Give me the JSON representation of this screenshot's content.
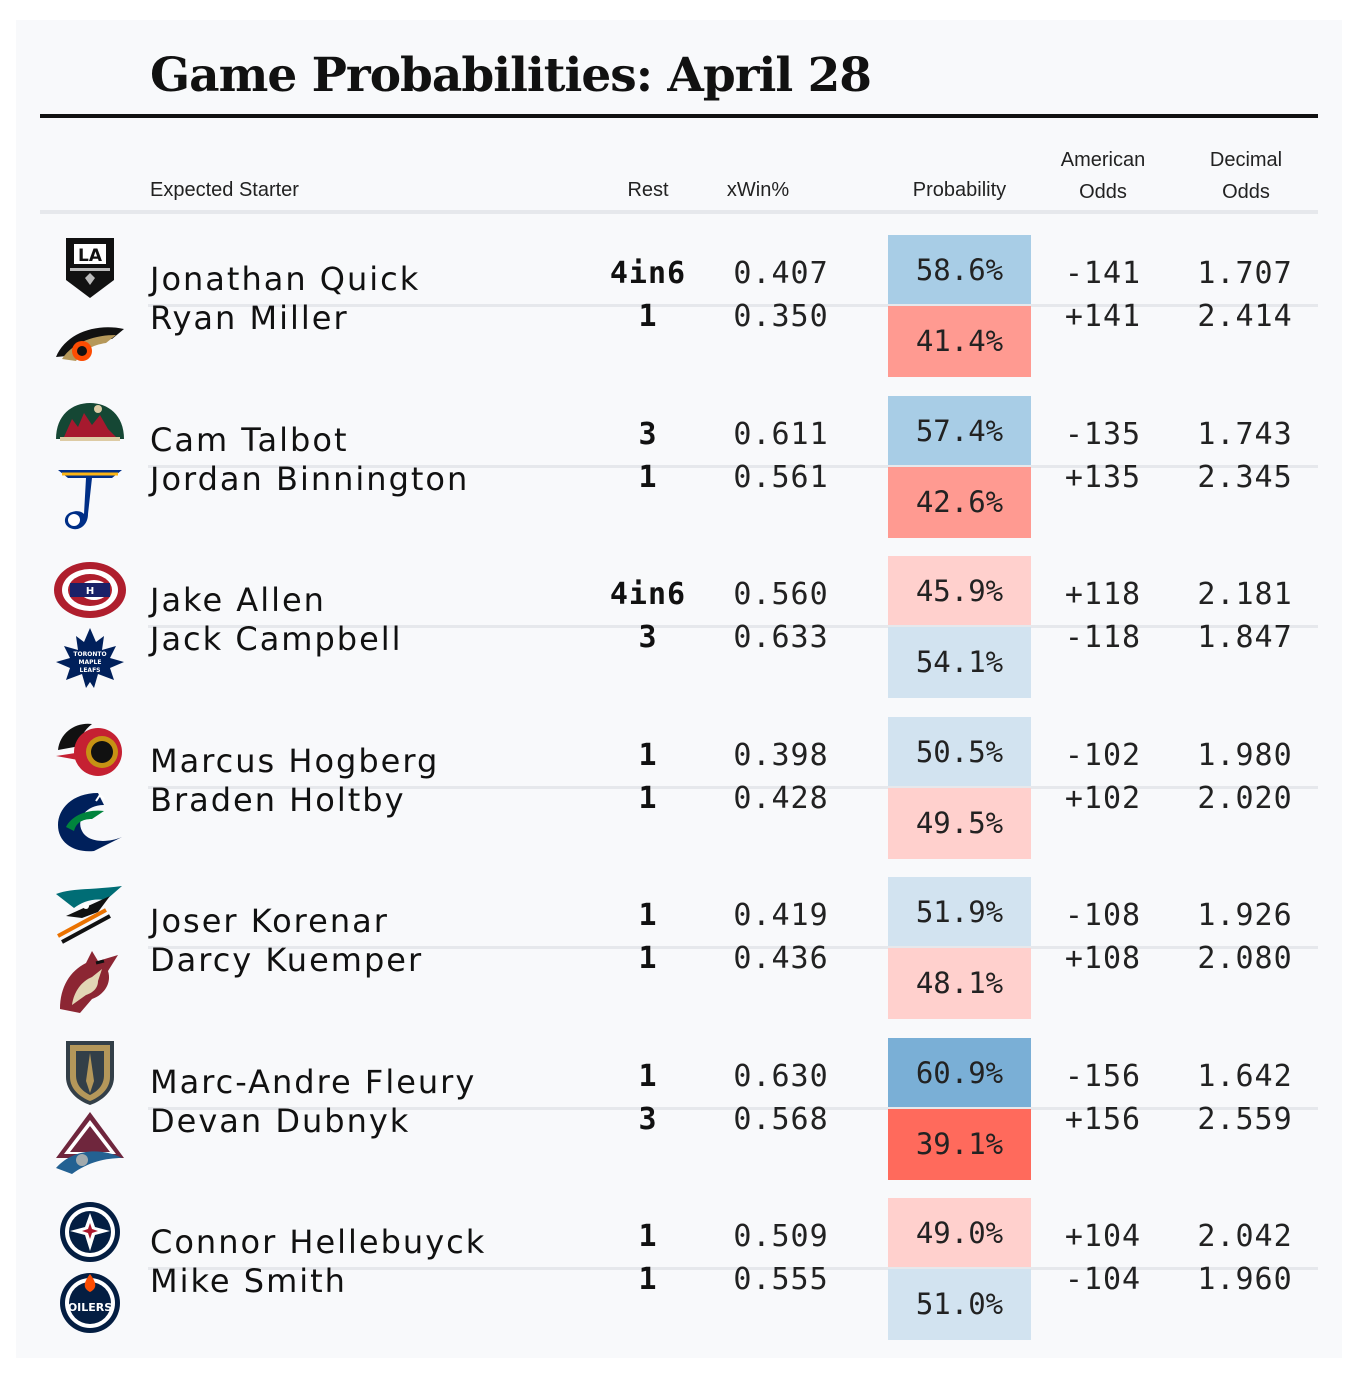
{
  "title": "Game Probabilities: April 28",
  "headers": {
    "starter": "Expected Starter",
    "rest": "Rest",
    "xwin": "xWin%",
    "probability": "Probability",
    "american_1": "American",
    "american_2": "Odds",
    "decimal_1": "Decimal",
    "decimal_2": "Odds"
  },
  "colors": {
    "blue_strong": "#7aafd6",
    "blue_mid": "#a8cde6",
    "blue_light": "#d2e3f0",
    "red_strong": "#ff6a5c",
    "red_mid": "#ff9a91",
    "red_light": "#ffd0cd"
  },
  "chart_data": {
    "type": "table",
    "title": "Game Probabilities: April 28",
    "columns": [
      "Expected Starter",
      "Rest",
      "xWin%",
      "Probability",
      "American Odds",
      "Decimal Odds"
    ],
    "games": [
      [
        {
          "team_icon": "los-angeles-kings-logo",
          "starter": "Jonathan Quick",
          "rest": "4in6",
          "xwin": "0.407",
          "probability": "58.6%",
          "prob_value": 58.6,
          "american": "-141",
          "decimal": "1.707"
        },
        {
          "team_icon": "anaheim-ducks-logo",
          "starter": "Ryan Miller",
          "rest": "1",
          "xwin": "0.350",
          "probability": "41.4%",
          "prob_value": 41.4,
          "american": "+141",
          "decimal": "2.414"
        }
      ],
      [
        {
          "team_icon": "minnesota-wild-logo",
          "starter": "Cam Talbot",
          "rest": "3",
          "xwin": "0.611",
          "probability": "57.4%",
          "prob_value": 57.4,
          "american": "-135",
          "decimal": "1.743"
        },
        {
          "team_icon": "st-louis-blues-logo",
          "starter": "Jordan Binnington",
          "rest": "1",
          "xwin": "0.561",
          "probability": "42.6%",
          "prob_value": 42.6,
          "american": "+135",
          "decimal": "2.345"
        }
      ],
      [
        {
          "team_icon": "montreal-canadiens-logo",
          "starter": "Jake Allen",
          "rest": "4in6",
          "xwin": "0.560",
          "probability": "45.9%",
          "prob_value": 45.9,
          "american": "+118",
          "decimal": "2.181"
        },
        {
          "team_icon": "toronto-maple-leafs-logo",
          "starter": "Jack Campbell",
          "rest": "3",
          "xwin": "0.633",
          "probability": "54.1%",
          "prob_value": 54.1,
          "american": "-118",
          "decimal": "1.847"
        }
      ],
      [
        {
          "team_icon": "ottawa-senators-logo",
          "starter": "Marcus Hogberg",
          "rest": "1",
          "xwin": "0.398",
          "probability": "50.5%",
          "prob_value": 50.5,
          "american": "-102",
          "decimal": "1.980"
        },
        {
          "team_icon": "vancouver-canucks-logo",
          "starter": "Braden Holtby",
          "rest": "1",
          "xwin": "0.428",
          "probability": "49.5%",
          "prob_value": 49.5,
          "american": "+102",
          "decimal": "2.020"
        }
      ],
      [
        {
          "team_icon": "san-jose-sharks-logo",
          "starter": "Joser Korenar",
          "rest": "1",
          "xwin": "0.419",
          "probability": "51.9%",
          "prob_value": 51.9,
          "american": "-108",
          "decimal": "1.926"
        },
        {
          "team_icon": "arizona-coyotes-logo",
          "starter": "Darcy Kuemper",
          "rest": "1",
          "xwin": "0.436",
          "probability": "48.1%",
          "prob_value": 48.1,
          "american": "+108",
          "decimal": "2.080"
        }
      ],
      [
        {
          "team_icon": "vegas-golden-knights-logo",
          "starter": "Marc-Andre Fleury",
          "rest": "1",
          "xwin": "0.630",
          "probability": "60.9%",
          "prob_value": 60.9,
          "american": "-156",
          "decimal": "1.642"
        },
        {
          "team_icon": "colorado-avalanche-logo",
          "starter": "Devan Dubnyk",
          "rest": "3",
          "xwin": "0.568",
          "probability": "39.1%",
          "prob_value": 39.1,
          "american": "+156",
          "decimal": "2.559"
        }
      ],
      [
        {
          "team_icon": "winnipeg-jets-logo",
          "starter": "Connor Hellebuyck",
          "rest": "1",
          "xwin": "0.509",
          "probability": "49.0%",
          "prob_value": 49.0,
          "american": "+104",
          "decimal": "2.042"
        },
        {
          "team_icon": "edmonton-oilers-logo",
          "starter": "Mike Smith",
          "rest": "1",
          "xwin": "0.555",
          "probability": "51.0%",
          "prob_value": 51.0,
          "american": "-104",
          "decimal": "1.960"
        }
      ]
    ]
  },
  "logo_text": {
    "kings": "LA",
    "leafs": "TORONTO MAPLE LEAFS",
    "oilers": "OILERS"
  }
}
